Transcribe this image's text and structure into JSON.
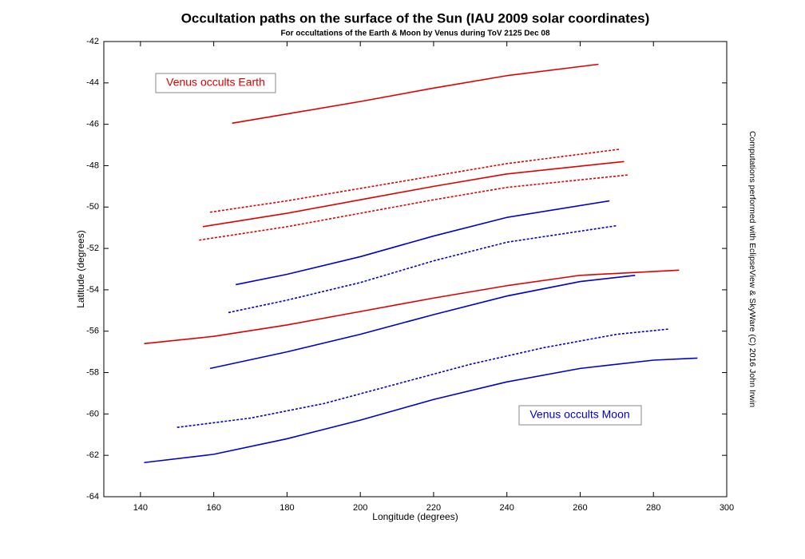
{
  "chart_data": {
    "type": "line",
    "title": "Occultation paths on the surface of the Sun (IAU 2009 solar coordinates)",
    "subtitle": "For occultations of the Earth & Moon by Venus during ToV 2125 Dec 08",
    "x_label": "Longitude (degrees)",
    "y_label": "Latitude (degrees)",
    "side_note": "Computations performed with EclipseView & SkyWare (C) 2016 John Irwin",
    "annotations": [
      "Venus occults Earth",
      "Venus occults Moon"
    ],
    "xlim": [
      130,
      300
    ],
    "ylim": [
      -64,
      -42
    ],
    "xticks": [
      140,
      160,
      180,
      200,
      220,
      240,
      260,
      280,
      300
    ],
    "yticks": [
      -64,
      -62,
      -60,
      -58,
      -56,
      -54,
      -52,
      -50,
      -48,
      -46,
      -44,
      -42
    ],
    "series": [
      {
        "color": "#e00000",
        "dashed": false,
        "x": [
          165,
          180,
          200,
          220,
          240,
          265
        ],
        "values": [
          -45.95,
          -45.5,
          -44.9,
          -44.25,
          -43.65,
          -43.1
        ]
      },
      {
        "color": "#e00000",
        "dashed": true,
        "x": [
          159,
          180,
          200,
          220,
          240,
          271
        ],
        "values": [
          -50.25,
          -49.7,
          -49.1,
          -48.5,
          -47.9,
          -47.2
        ]
      },
      {
        "color": "#e00000",
        "dashed": false,
        "x": [
          157,
          180,
          200,
          220,
          240,
          272
        ],
        "values": [
          -50.95,
          -50.3,
          -49.65,
          -49.0,
          -48.4,
          -47.8
        ]
      },
      {
        "color": "#e00000",
        "dashed": true,
        "x": [
          156,
          180,
          200,
          220,
          240,
          273
        ],
        "values": [
          -51.6,
          -50.95,
          -50.3,
          -49.65,
          -49.05,
          -48.45
        ]
      },
      {
        "color": "#0000d0",
        "dashed": false,
        "x": [
          166,
          180,
          200,
          220,
          240,
          268
        ],
        "values": [
          -53.75,
          -53.25,
          -52.4,
          -51.4,
          -50.5,
          -49.7
        ]
      },
      {
        "color": "#0000d0",
        "dashed": true,
        "x": [
          164,
          180,
          200,
          220,
          240,
          270
        ],
        "values": [
          -55.1,
          -54.5,
          -53.65,
          -52.6,
          -51.7,
          -50.9
        ]
      },
      {
        "color": "#e00000",
        "dashed": false,
        "x": [
          141,
          160,
          180,
          200,
          220,
          240,
          260,
          287
        ],
        "values": [
          -56.6,
          -56.25,
          -55.7,
          -55.05,
          -54.4,
          -53.8,
          -53.3,
          -53.05
        ]
      },
      {
        "color": "#0000d0",
        "dashed": false,
        "x": [
          159,
          180,
          200,
          220,
          240,
          260,
          275
        ],
        "values": [
          -57.8,
          -57.0,
          -56.15,
          -55.2,
          -54.3,
          -53.6,
          -53.3
        ]
      },
      {
        "color": "#0000d0",
        "dashed": true,
        "x": [
          150,
          170,
          190,
          210,
          230,
          250,
          270,
          284
        ],
        "values": [
          -60.65,
          -60.2,
          -59.5,
          -58.55,
          -57.6,
          -56.8,
          -56.15,
          -55.9
        ]
      },
      {
        "color": "#0000d0",
        "dashed": false,
        "x": [
          141,
          160,
          180,
          200,
          220,
          240,
          260,
          280,
          292
        ],
        "values": [
          -62.35,
          -61.95,
          -61.2,
          -60.3,
          -59.3,
          -58.45,
          -57.8,
          -57.4,
          -57.3
        ]
      }
    ]
  }
}
